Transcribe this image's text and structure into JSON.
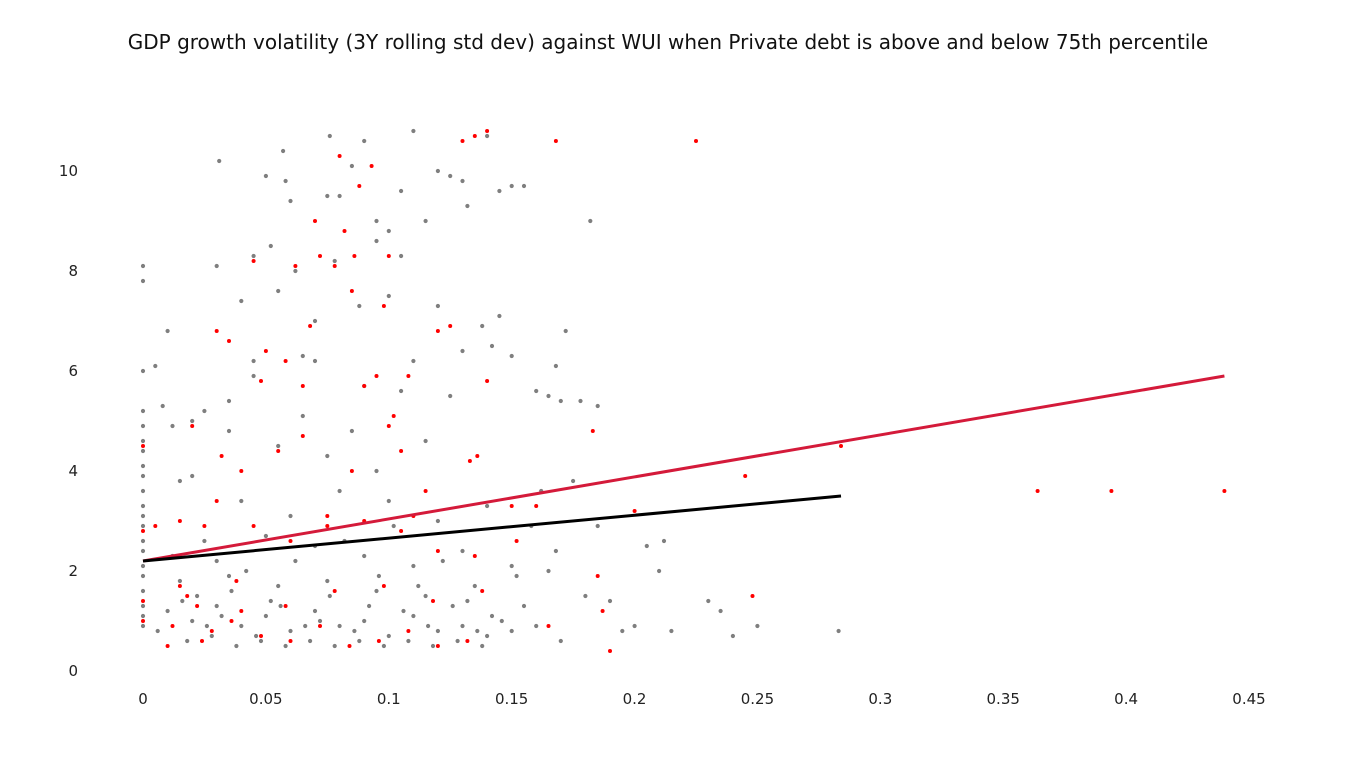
{
  "chart_data": {
    "type": "scatter",
    "title": "GDP growth volatility (3Y rolling std dev) against WUI when Private debt is above and below 75th percentile",
    "xlabel": "",
    "ylabel": "",
    "xlim": [
      0,
      0.45
    ],
    "ylim": [
      0,
      11
    ],
    "xticks": [
      "0",
      "0.05",
      "0.1",
      "0.15",
      "0.2",
      "0.25",
      "0.3",
      "0.35",
      "0.4",
      "0.45"
    ],
    "yticks": [
      "0",
      "2",
      "4",
      "6",
      "8",
      "10"
    ],
    "grid": false,
    "legend": "none",
    "series": [
      {
        "role": "below 75th percentile",
        "color": "#7f7f7f",
        "marker": "dot",
        "points": [
          [
            0,
            8.1
          ],
          [
            0,
            7.8
          ],
          [
            0,
            6.0
          ],
          [
            0,
            5.2
          ],
          [
            0,
            4.9
          ],
          [
            0,
            4.6
          ],
          [
            0,
            4.4
          ],
          [
            0,
            4.1
          ],
          [
            0,
            3.9
          ],
          [
            0,
            3.6
          ],
          [
            0,
            3.3
          ],
          [
            0,
            3.1
          ],
          [
            0,
            2.9
          ],
          [
            0,
            2.6
          ],
          [
            0,
            2.4
          ],
          [
            0,
            2.1
          ],
          [
            0,
            1.9
          ],
          [
            0,
            1.6
          ],
          [
            0,
            1.3
          ],
          [
            0,
            1.1
          ],
          [
            0,
            0.9
          ],
          [
            0.005,
            6.1
          ],
          [
            0.008,
            5.3
          ],
          [
            0.01,
            6.8
          ],
          [
            0.012,
            4.9
          ],
          [
            0.015,
            3.8
          ],
          [
            0.02,
            5.0
          ],
          [
            0.025,
            5.2
          ],
          [
            0.03,
            8.1
          ],
          [
            0.031,
            10.2
          ],
          [
            0.035,
            5.4
          ],
          [
            0.04,
            7.4
          ],
          [
            0.045,
            6.2
          ],
          [
            0.05,
            9.9
          ],
          [
            0.052,
            8.5
          ],
          [
            0.055,
            7.6
          ],
          [
            0.057,
            10.4
          ],
          [
            0.058,
            9.8
          ],
          [
            0.06,
            9.4
          ],
          [
            0.065,
            6.3
          ],
          [
            0.07,
            6.2
          ],
          [
            0.075,
            9.5
          ],
          [
            0.076,
            10.7
          ],
          [
            0.08,
            9.5
          ],
          [
            0.085,
            10.1
          ],
          [
            0.09,
            10.6
          ],
          [
            0.095,
            9.0
          ],
          [
            0.1,
            8.8
          ],
          [
            0.105,
            9.6
          ],
          [
            0.11,
            10.8
          ],
          [
            0.115,
            9.0
          ],
          [
            0.12,
            10.0
          ],
          [
            0.125,
            9.9
          ],
          [
            0.13,
            9.8
          ],
          [
            0.132,
            9.3
          ],
          [
            0.14,
            10.7
          ],
          [
            0.145,
            9.6
          ],
          [
            0.15,
            9.7
          ],
          [
            0.155,
            9.7
          ],
          [
            0.182,
            9.0
          ],
          [
            0.172,
            6.8
          ],
          [
            0.168,
            6.1
          ],
          [
            0.165,
            5.5
          ],
          [
            0.17,
            5.4
          ],
          [
            0.178,
            5.4
          ],
          [
            0.185,
            5.3
          ],
          [
            0.145,
            7.1
          ],
          [
            0.142,
            6.5
          ],
          [
            0.138,
            6.9
          ],
          [
            0.15,
            6.3
          ],
          [
            0.16,
            5.6
          ],
          [
            0.162,
            3.6
          ],
          [
            0.175,
            3.8
          ],
          [
            0.168,
            2.4
          ],
          [
            0.158,
            2.9
          ],
          [
            0.165,
            2.0
          ],
          [
            0.18,
            1.5
          ],
          [
            0.19,
            1.4
          ],
          [
            0.2,
            0.9
          ],
          [
            0.205,
            2.5
          ],
          [
            0.21,
            2.0
          ],
          [
            0.212,
            2.6
          ],
          [
            0.215,
            0.8
          ],
          [
            0.23,
            1.4
          ],
          [
            0.235,
            1.2
          ],
          [
            0.24,
            0.7
          ],
          [
            0.25,
            0.9
          ],
          [
            0.283,
            0.8
          ],
          [
            0.195,
            0.8
          ],
          [
            0.185,
            2.9
          ],
          [
            0.02,
            3.9
          ],
          [
            0.04,
            3.4
          ],
          [
            0.06,
            3.1
          ],
          [
            0.08,
            3.6
          ],
          [
            0.1,
            3.4
          ],
          [
            0.12,
            3.0
          ],
          [
            0.14,
            3.3
          ],
          [
            0.055,
            4.5
          ],
          [
            0.075,
            4.3
          ],
          [
            0.095,
            4.0
          ],
          [
            0.115,
            4.6
          ],
          [
            0.035,
            4.8
          ],
          [
            0.065,
            5.1
          ],
          [
            0.085,
            4.8
          ],
          [
            0.105,
            5.6
          ],
          [
            0.125,
            5.5
          ],
          [
            0.045,
            5.9
          ],
          [
            0.09,
            5.7
          ],
          [
            0.11,
            6.2
          ],
          [
            0.13,
            6.4
          ],
          [
            0.07,
            7.0
          ],
          [
            0.088,
            7.3
          ],
          [
            0.1,
            7.5
          ],
          [
            0.12,
            7.3
          ],
          [
            0.045,
            8.3
          ],
          [
            0.062,
            8.0
          ],
          [
            0.078,
            8.2
          ],
          [
            0.095,
            8.6
          ],
          [
            0.105,
            8.3
          ],
          [
            0.025,
            2.6
          ],
          [
            0.03,
            2.2
          ],
          [
            0.05,
            2.7
          ],
          [
            0.07,
            2.5
          ],
          [
            0.09,
            2.3
          ],
          [
            0.11,
            2.1
          ],
          [
            0.13,
            2.4
          ],
          [
            0.15,
            2.1
          ],
          [
            0.015,
            1.8
          ],
          [
            0.035,
            1.9
          ],
          [
            0.055,
            1.7
          ],
          [
            0.075,
            1.8
          ],
          [
            0.095,
            1.6
          ],
          [
            0.115,
            1.5
          ],
          [
            0.135,
            1.7
          ],
          [
            0.155,
            1.3
          ],
          [
            0.01,
            1.2
          ],
          [
            0.02,
            1.0
          ],
          [
            0.03,
            1.3
          ],
          [
            0.04,
            0.9
          ],
          [
            0.05,
            1.1
          ],
          [
            0.06,
            0.8
          ],
          [
            0.07,
            1.2
          ],
          [
            0.08,
            0.9
          ],
          [
            0.09,
            1.0
          ],
          [
            0.1,
            0.7
          ],
          [
            0.11,
            1.1
          ],
          [
            0.12,
            0.8
          ],
          [
            0.13,
            0.9
          ],
          [
            0.14,
            0.7
          ],
          [
            0.15,
            0.8
          ],
          [
            0.16,
            0.9
          ],
          [
            0.17,
            0.6
          ],
          [
            0.018,
            0.6
          ],
          [
            0.028,
            0.7
          ],
          [
            0.038,
            0.5
          ],
          [
            0.048,
            0.6
          ],
          [
            0.058,
            0.5
          ],
          [
            0.068,
            0.6
          ],
          [
            0.078,
            0.5
          ],
          [
            0.088,
            0.6
          ],
          [
            0.098,
            0.5
          ],
          [
            0.108,
            0.6
          ],
          [
            0.118,
            0.5
          ],
          [
            0.128,
            0.6
          ],
          [
            0.138,
            0.5
          ],
          [
            0.012,
            2.3
          ],
          [
            0.022,
            1.5
          ],
          [
            0.032,
            1.1
          ],
          [
            0.042,
            2.0
          ],
          [
            0.052,
            1.4
          ],
          [
            0.062,
            2.2
          ],
          [
            0.072,
            1.0
          ],
          [
            0.082,
            2.6
          ],
          [
            0.092,
            1.3
          ],
          [
            0.102,
            2.9
          ],
          [
            0.112,
            1.7
          ],
          [
            0.122,
            2.2
          ],
          [
            0.132,
            1.4
          ],
          [
            0.142,
            1.1
          ],
          [
            0.152,
            1.9
          ],
          [
            0.006,
            0.8
          ],
          [
            0.016,
            1.4
          ],
          [
            0.026,
            0.9
          ],
          [
            0.036,
            1.6
          ],
          [
            0.046,
            0.7
          ],
          [
            0.056,
            1.3
          ],
          [
            0.066,
            0.9
          ],
          [
            0.076,
            1.5
          ],
          [
            0.086,
            0.8
          ],
          [
            0.096,
            1.9
          ],
          [
            0.106,
            1.2
          ],
          [
            0.116,
            0.9
          ],
          [
            0.126,
            1.3
          ],
          [
            0.136,
            0.8
          ],
          [
            0.146,
            1.0
          ]
        ]
      },
      {
        "role": "above 75th percentile",
        "color": "#ff0000",
        "marker": "dot",
        "points": [
          [
            0,
            4.5
          ],
          [
            0,
            2.8
          ],
          [
            0,
            1.4
          ],
          [
            0,
            1.0
          ],
          [
            0.005,
            2.9
          ],
          [
            0.01,
            0.5
          ],
          [
            0.015,
            1.7
          ],
          [
            0.02,
            4.9
          ],
          [
            0.022,
            1.3
          ],
          [
            0.025,
            2.9
          ],
          [
            0.028,
            0.8
          ],
          [
            0.03,
            6.8
          ],
          [
            0.032,
            4.3
          ],
          [
            0.035,
            6.6
          ],
          [
            0.04,
            1.2
          ],
          [
            0.045,
            8.2
          ],
          [
            0.048,
            5.8
          ],
          [
            0.05,
            6.4
          ],
          [
            0.055,
            4.4
          ],
          [
            0.058,
            6.2
          ],
          [
            0.062,
            8.1
          ],
          [
            0.065,
            5.7
          ],
          [
            0.068,
            6.9
          ],
          [
            0.07,
            9.0
          ],
          [
            0.072,
            8.3
          ],
          [
            0.075,
            3.1
          ],
          [
            0.078,
            8.1
          ],
          [
            0.08,
            10.3
          ],
          [
            0.082,
            8.8
          ],
          [
            0.085,
            7.6
          ],
          [
            0.086,
            8.3
          ],
          [
            0.088,
            9.7
          ],
          [
            0.09,
            5.7
          ],
          [
            0.093,
            10.1
          ],
          [
            0.095,
            5.9
          ],
          [
            0.098,
            7.3
          ],
          [
            0.1,
            8.3
          ],
          [
            0.102,
            5.1
          ],
          [
            0.105,
            4.4
          ],
          [
            0.108,
            5.9
          ],
          [
            0.11,
            3.1
          ],
          [
            0.12,
            6.8
          ],
          [
            0.125,
            6.9
          ],
          [
            0.13,
            10.6
          ],
          [
            0.135,
            10.7
          ],
          [
            0.14,
            10.8
          ],
          [
            0.14,
            5.8
          ],
          [
            0.136,
            4.3
          ],
          [
            0.133,
            4.2
          ],
          [
            0.15,
            3.3
          ],
          [
            0.152,
            2.6
          ],
          [
            0.16,
            3.3
          ],
          [
            0.165,
            0.9
          ],
          [
            0.168,
            10.6
          ],
          [
            0.183,
            4.8
          ],
          [
            0.185,
            1.9
          ],
          [
            0.187,
            1.2
          ],
          [
            0.19,
            0.4
          ],
          [
            0.2,
            3.2
          ],
          [
            0.225,
            10.6
          ],
          [
            0.245,
            3.9
          ],
          [
            0.248,
            1.5
          ],
          [
            0.284,
            4.5
          ],
          [
            0.364,
            3.6
          ],
          [
            0.394,
            3.6
          ],
          [
            0.44,
            3.6
          ],
          [
            0.015,
            3.0
          ],
          [
            0.03,
            3.4
          ],
          [
            0.045,
            2.9
          ],
          [
            0.06,
            2.6
          ],
          [
            0.075,
            2.9
          ],
          [
            0.09,
            3.0
          ],
          [
            0.105,
            2.8
          ],
          [
            0.12,
            2.4
          ],
          [
            0.135,
            2.3
          ],
          [
            0.018,
            1.5
          ],
          [
            0.038,
            1.8
          ],
          [
            0.058,
            1.3
          ],
          [
            0.078,
            1.6
          ],
          [
            0.098,
            1.7
          ],
          [
            0.118,
            1.4
          ],
          [
            0.138,
            1.6
          ],
          [
            0.012,
            0.9
          ],
          [
            0.024,
            0.6
          ],
          [
            0.036,
            1.0
          ],
          [
            0.048,
            0.7
          ],
          [
            0.06,
            0.6
          ],
          [
            0.072,
            0.9
          ],
          [
            0.084,
            0.5
          ],
          [
            0.096,
            0.6
          ],
          [
            0.108,
            0.8
          ],
          [
            0.12,
            0.5
          ],
          [
            0.132,
            0.6
          ],
          [
            0.04,
            4.0
          ],
          [
            0.065,
            4.7
          ],
          [
            0.085,
            4.0
          ],
          [
            0.1,
            4.9
          ],
          [
            0.115,
            3.6
          ]
        ]
      }
    ],
    "trendlines": [
      {
        "role": "above 75th percentile",
        "color": "#d41a3a",
        "x": [
          0,
          0.44
        ],
        "y": [
          2.2,
          5.9
        ]
      },
      {
        "role": "below 75th percentile",
        "color": "#000000",
        "x": [
          0,
          0.284
        ],
        "y": [
          2.2,
          3.5
        ]
      }
    ]
  }
}
